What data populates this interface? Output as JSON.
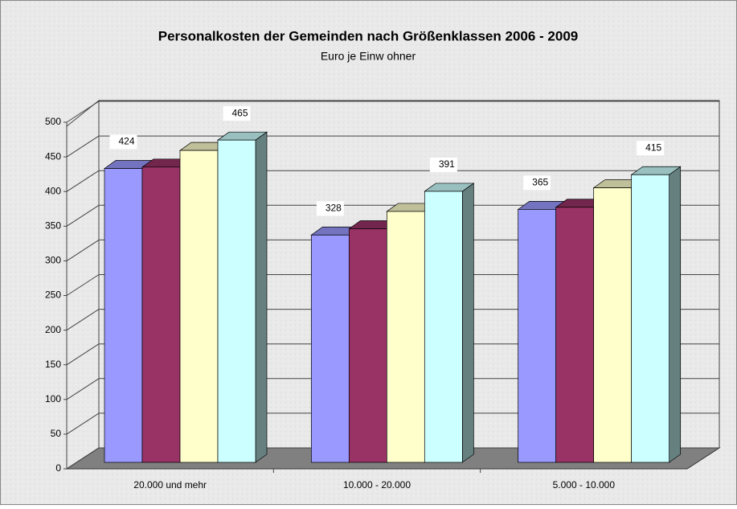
{
  "chart_data": {
    "type": "bar3d",
    "title": "Personalkosten der Gemeinden nach Größenklassen 2006 - 2009",
    "subtitle": "Euro je Einw ohner",
    "categories": [
      "20.000 und mehr",
      "10.000 - 20.000",
      "5.000 - 10.000"
    ],
    "series": [
      {
        "color": "#9999ff",
        "values": [
          424,
          328,
          365
        ],
        "labels": true
      },
      {
        "color": "#993366",
        "values": [
          426,
          337,
          368
        ],
        "labels": false
      },
      {
        "color": "#ffffcc",
        "values": [
          450,
          362,
          396
        ],
        "labels": false
      },
      {
        "color": "#ccffff",
        "values": [
          465,
          391,
          415
        ],
        "labels": true
      }
    ],
    "ylim": [
      0,
      500
    ],
    "yticks": [
      0,
      50,
      100,
      150,
      200,
      250,
      300,
      350,
      400,
      450,
      500
    ],
    "grid": true
  }
}
